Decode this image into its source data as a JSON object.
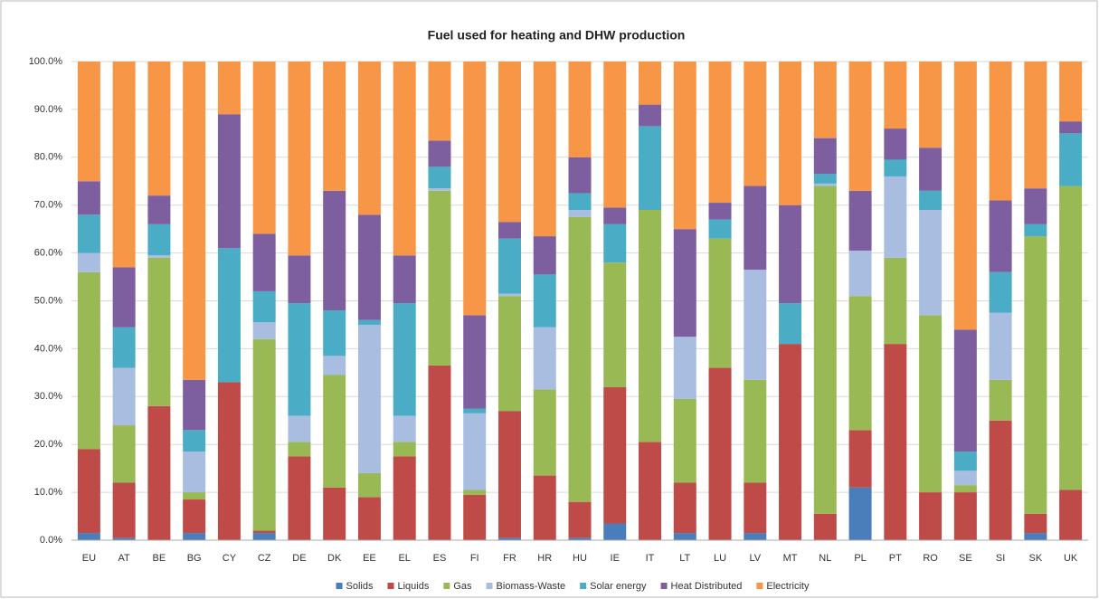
{
  "chart_data": {
    "type": "stacked-bar",
    "title": "Fuel used for heating and DHW production",
    "categories": [
      "EU",
      "AT",
      "BE",
      "BG",
      "CY",
      "CZ",
      "DE",
      "DK",
      "EE",
      "EL",
      "ES",
      "FI",
      "FR",
      "HR",
      "HU",
      "IE",
      "IT",
      "LT",
      "LU",
      "LV",
      "MT",
      "NL",
      "PL",
      "PT",
      "RO",
      "SE",
      "SI",
      "SK",
      "UK"
    ],
    "series": [
      {
        "name": "Solids",
        "color": "#4a7ebb",
        "values": [
          1.5,
          0.5,
          0,
          1.5,
          0,
          1.5,
          0,
          0,
          0,
          0,
          0,
          0,
          0.5,
          0,
          0.5,
          3.5,
          0,
          1.5,
          0,
          1.5,
          0,
          0,
          11,
          0,
          0,
          0,
          0,
          1.5,
          0
        ]
      },
      {
        "name": "Liquids",
        "color": "#be4b48",
        "values": [
          17.5,
          11.5,
          28,
          7,
          33,
          0.5,
          17.5,
          11,
          9,
          17.5,
          36.5,
          9.5,
          26.5,
          13.5,
          7.5,
          28.5,
          20.5,
          10.5,
          36,
          10.5,
          41,
          5.5,
          12,
          41,
          10,
          10,
          25,
          4,
          10.5
        ]
      },
      {
        "name": "Gas",
        "color": "#98b954",
        "values": [
          37,
          12,
          31,
          1.5,
          0,
          40,
          3,
          23.5,
          5,
          3,
          36.5,
          1,
          24,
          18,
          59.5,
          26,
          48.5,
          17.5,
          27,
          21.5,
          0,
          68.5,
          28,
          18,
          37,
          1.5,
          8.5,
          58,
          63.5
        ]
      },
      {
        "name": "Biomass-Waste",
        "color": "#a9bde0",
        "values": [
          4,
          12,
          0.5,
          8.5,
          0,
          3.5,
          5.5,
          4,
          31,
          5.5,
          0.5,
          16,
          0.5,
          13,
          1.5,
          0,
          0,
          13,
          0,
          23,
          0,
          0.5,
          9.5,
          17,
          22,
          3,
          14,
          0,
          0
        ]
      },
      {
        "name": "Solar energy",
        "color": "#4bacc6",
        "values": [
          8,
          8.5,
          6.5,
          4.5,
          28,
          6.5,
          23.5,
          9.5,
          1,
          23.5,
          4.5,
          1,
          11.5,
          11,
          3.5,
          8,
          17.5,
          0,
          4,
          0,
          8.5,
          2,
          0,
          3.5,
          4,
          4,
          8.5,
          2.5,
          11
        ]
      },
      {
        "name": "Heat Distributed",
        "color": "#7d5fa0",
        "values": [
          7,
          12.5,
          6,
          10.5,
          28,
          12,
          10,
          25,
          22,
          10,
          5.5,
          19.5,
          3.5,
          8,
          7.5,
          3.5,
          4.5,
          22.5,
          3.5,
          17.5,
          20.5,
          7.5,
          12.5,
          6.5,
          9,
          25.5,
          15,
          7.5,
          2.5
        ]
      },
      {
        "name": "Electricity",
        "color": "#f79646",
        "values": [
          25,
          43,
          28,
          66.5,
          11,
          36,
          40.5,
          27,
          32,
          40.5,
          16.5,
          53,
          33.5,
          36.5,
          20,
          30.5,
          9,
          35,
          29.5,
          26,
          30,
          16,
          27,
          14,
          18,
          56,
          29,
          26.5,
          12.5
        ]
      }
    ],
    "ylim": [
      0,
      100
    ],
    "yticks": [
      {
        "value": 0,
        "label": "0.0%"
      },
      {
        "value": 10,
        "label": "10.0%"
      },
      {
        "value": 20,
        "label": "20.0%"
      },
      {
        "value": 30,
        "label": "30.0%"
      },
      {
        "value": 40,
        "label": "40.0%"
      },
      {
        "value": 50,
        "label": "50.0%"
      },
      {
        "value": 60,
        "label": "60.0%"
      },
      {
        "value": 70,
        "label": "70.0%"
      },
      {
        "value": 80,
        "label": "80.0%"
      },
      {
        "value": 90,
        "label": "90.0%"
      },
      {
        "value": 100,
        "label": "100.0%"
      }
    ],
    "grid": true,
    "legend": "bottom"
  }
}
